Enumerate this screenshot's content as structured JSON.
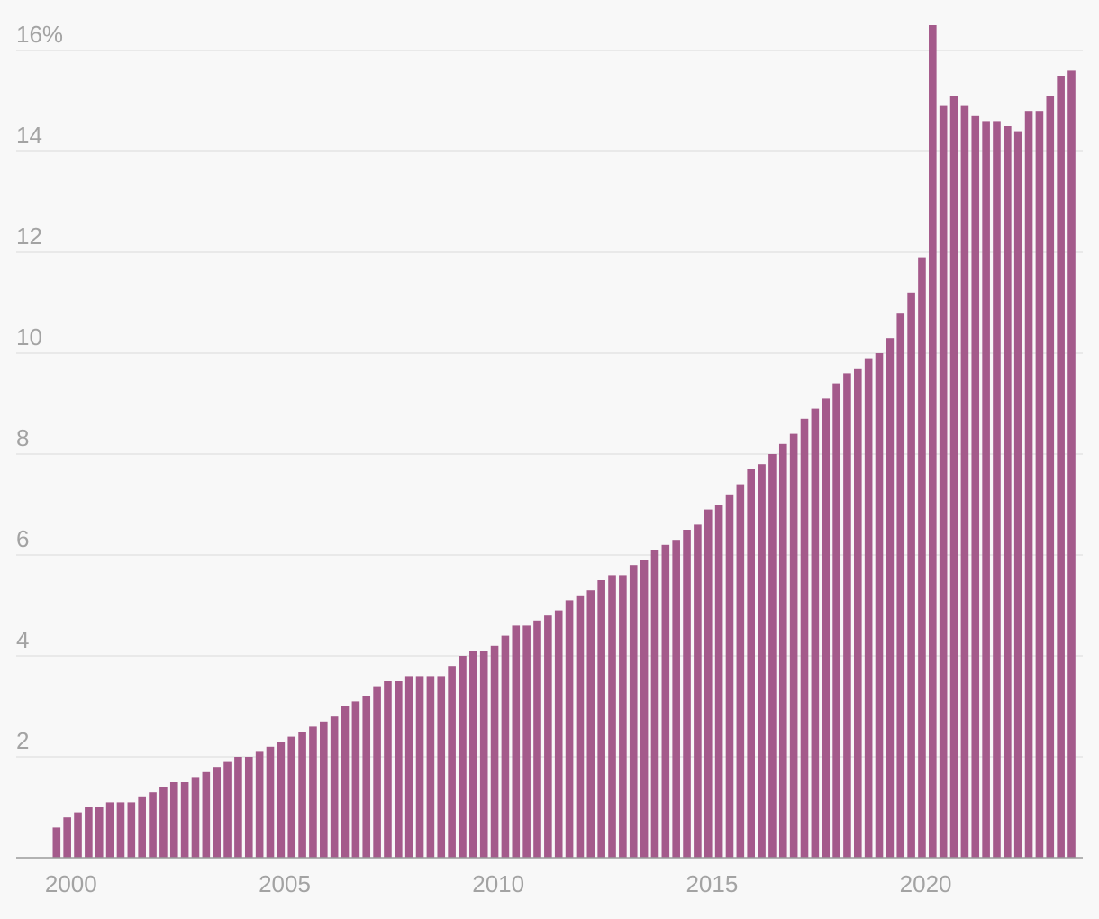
{
  "chart_data": {
    "type": "bar",
    "title": "",
    "xlabel": "",
    "ylabel": "",
    "y_unit_suffix": "%",
    "ylim": [
      0,
      16.5
    ],
    "grid": true,
    "y_ticks": [
      "2",
      "4",
      "6",
      "8",
      "10",
      "12",
      "14",
      "16%"
    ],
    "y_tick_values": [
      2,
      4,
      6,
      8,
      10,
      12,
      14,
      16
    ],
    "x_ticks": [
      "2000",
      "2005",
      "2010",
      "2015",
      "2020"
    ],
    "bar_color": "#a45a8b",
    "x_start": "2000 Q1",
    "frequency": "quarterly",
    "values": [
      0.6,
      0.8,
      0.9,
      1.0,
      1.0,
      1.1,
      1.1,
      1.1,
      1.2,
      1.3,
      1.4,
      1.5,
      1.5,
      1.6,
      1.7,
      1.8,
      1.9,
      2.0,
      2.0,
      2.1,
      2.2,
      2.3,
      2.4,
      2.5,
      2.6,
      2.7,
      2.8,
      3.0,
      3.1,
      3.2,
      3.4,
      3.5,
      3.5,
      3.6,
      3.6,
      3.6,
      3.6,
      3.8,
      4.0,
      4.1,
      4.1,
      4.2,
      4.4,
      4.6,
      4.6,
      4.7,
      4.8,
      4.9,
      5.1,
      5.2,
      5.3,
      5.5,
      5.6,
      5.6,
      5.8,
      5.9,
      6.1,
      6.2,
      6.3,
      6.5,
      6.6,
      6.9,
      7.0,
      7.2,
      7.4,
      7.7,
      7.8,
      8.0,
      8.2,
      8.4,
      8.7,
      8.9,
      9.1,
      9.4,
      9.6,
      9.7,
      9.9,
      10.0,
      10.3,
      10.8,
      11.2,
      11.9,
      16.5,
      14.9,
      15.1,
      14.9,
      14.7,
      14.6,
      14.6,
      14.5,
      14.4,
      14.8,
      14.8,
      15.1,
      15.5,
      15.6
    ]
  }
}
